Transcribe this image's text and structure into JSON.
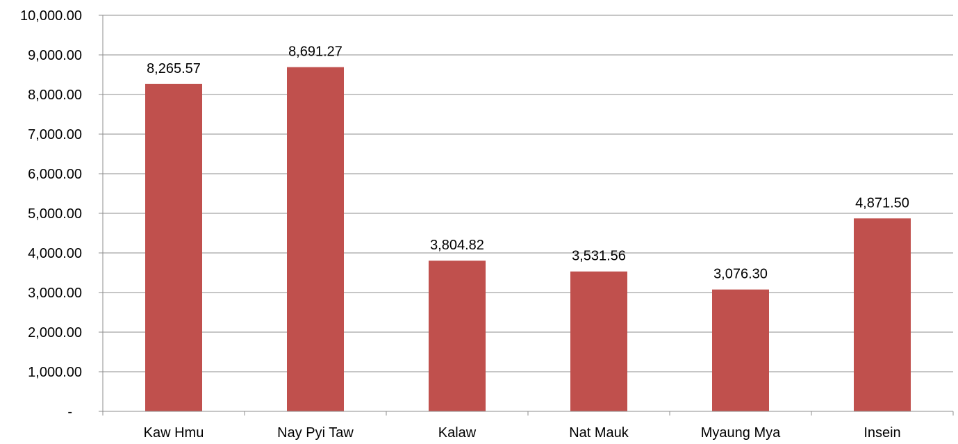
{
  "chart_data": {
    "type": "bar",
    "categories": [
      "Kaw Hmu",
      "Nay Pyi Taw",
      "Kalaw",
      "Nat Mauk",
      "Myaung Mya",
      "Insein"
    ],
    "values": [
      8265.57,
      8691.27,
      3804.82,
      3531.56,
      3076.3,
      4871.5
    ],
    "data_labels": [
      "8,265.57",
      "8,691.27",
      "3,804.82",
      "3,531.56",
      "3,076.30",
      "4,871.50"
    ],
    "y_ticks": [
      {
        "value": 0,
        "label": "-"
      },
      {
        "value": 1000,
        "label": "1,000.00"
      },
      {
        "value": 2000,
        "label": "2,000.00"
      },
      {
        "value": 3000,
        "label": "3,000.00"
      },
      {
        "value": 4000,
        "label": "4,000.00"
      },
      {
        "value": 5000,
        "label": "5,000.00"
      },
      {
        "value": 6000,
        "label": "6,000.00"
      },
      {
        "value": 7000,
        "label": "7,000.00"
      },
      {
        "value": 8000,
        "label": "8,000.00"
      },
      {
        "value": 9000,
        "label": "9,000.00"
      },
      {
        "value": 10000,
        "label": "10,000.00"
      }
    ],
    "ylim": [
      0,
      10000
    ],
    "grid": true,
    "legend": "none",
    "bar_color": "#C0504D",
    "title": "",
    "xlabel": "",
    "ylabel": ""
  }
}
